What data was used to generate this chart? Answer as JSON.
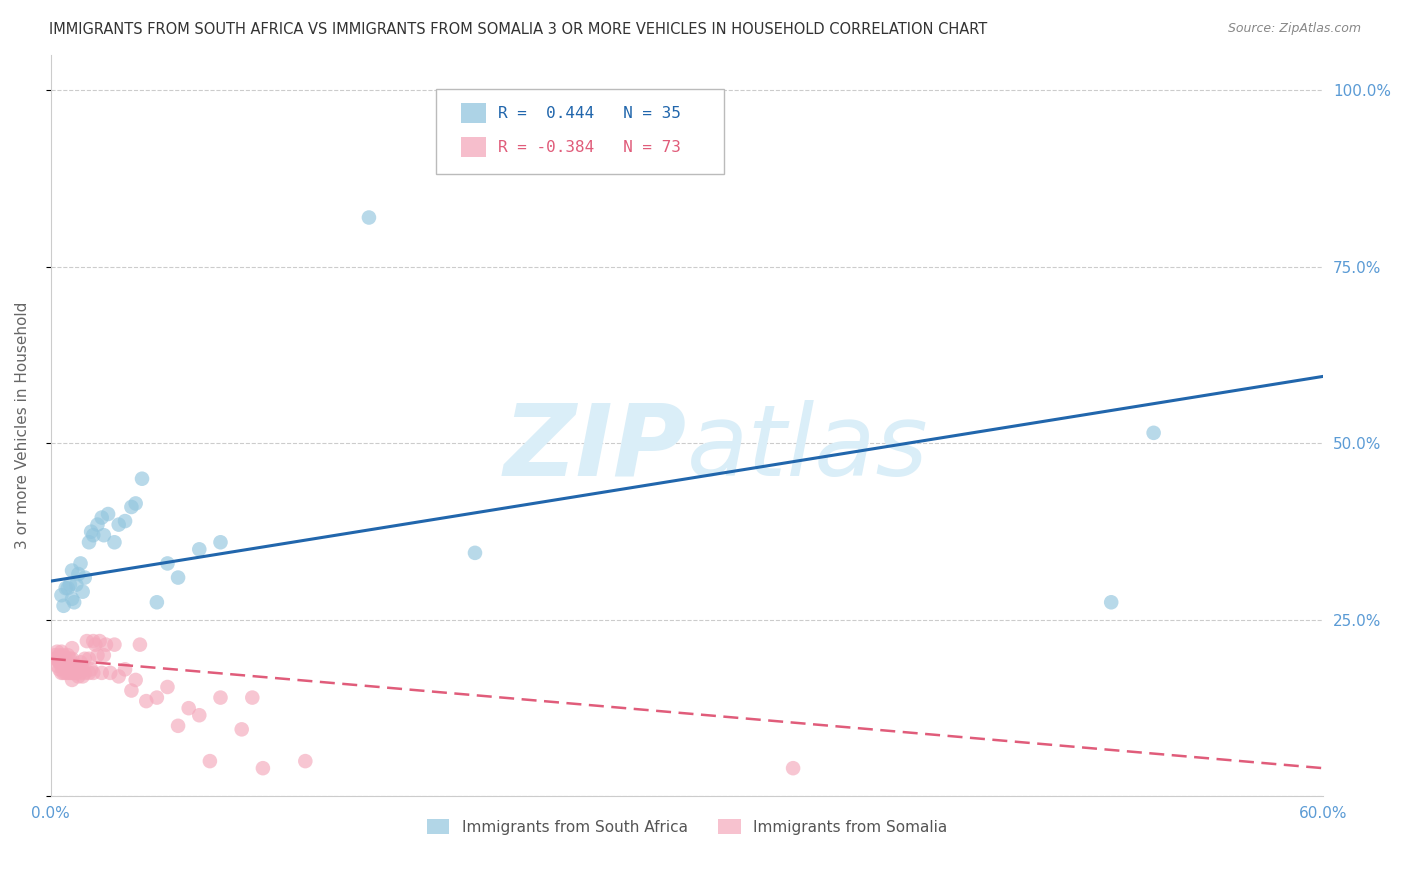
{
  "title": "IMMIGRANTS FROM SOUTH AFRICA VS IMMIGRANTS FROM SOMALIA 3 OR MORE VEHICLES IN HOUSEHOLD CORRELATION CHART",
  "source": "Source: ZipAtlas.com",
  "ylabel_left": "3 or more Vehicles in Household",
  "ylabel_right_labels": [
    "25.0%",
    "50.0%",
    "75.0%",
    "100.0%"
  ],
  "ylabel_right_values": [
    0.25,
    0.5,
    0.75,
    1.0
  ],
  "xlim": [
    0.0,
    0.6
  ],
  "ylim": [
    0.0,
    1.05
  ],
  "xtick_labels": [
    "0.0%",
    "",
    "",
    "",
    "",
    "",
    "60.0%"
  ],
  "xtick_values": [
    0.0,
    0.1,
    0.2,
    0.3,
    0.4,
    0.5,
    0.6
  ],
  "legend_blue_r": "R =  0.444",
  "legend_blue_n": "N = 35",
  "legend_pink_r": "R = -0.384",
  "legend_pink_n": "N = 73",
  "legend_blue_label": "Immigrants from South Africa",
  "legend_pink_label": "Immigrants from Somalia",
  "blue_color": "#92c5de",
  "blue_line_color": "#2166ac",
  "pink_color": "#f4a8bb",
  "pink_line_color": "#e05c7a",
  "watermark_color": "#daeef8",
  "background_color": "#ffffff",
  "grid_color": "#cccccc",
  "axis_label_color": "#5b9bd5",
  "title_color": "#333333",
  "source_color": "#888888",
  "ylabel_color": "#666666",
  "blue_line_start_y": 0.305,
  "blue_line_end_y": 0.595,
  "pink_line_start_y": 0.195,
  "pink_line_end_y": 0.04,
  "blue_x": [
    0.005,
    0.006,
    0.007,
    0.008,
    0.009,
    0.01,
    0.01,
    0.011,
    0.012,
    0.013,
    0.014,
    0.015,
    0.016,
    0.018,
    0.019,
    0.02,
    0.022,
    0.024,
    0.025,
    0.027,
    0.03,
    0.032,
    0.035,
    0.038,
    0.04,
    0.043,
    0.05,
    0.055,
    0.06,
    0.07,
    0.08,
    0.15,
    0.2,
    0.5,
    0.52
  ],
  "blue_y": [
    0.285,
    0.27,
    0.295,
    0.295,
    0.3,
    0.28,
    0.32,
    0.275,
    0.3,
    0.315,
    0.33,
    0.29,
    0.31,
    0.36,
    0.375,
    0.37,
    0.385,
    0.395,
    0.37,
    0.4,
    0.36,
    0.385,
    0.39,
    0.41,
    0.415,
    0.45,
    0.275,
    0.33,
    0.31,
    0.35,
    0.36,
    0.82,
    0.345,
    0.275,
    0.515
  ],
  "pink_x": [
    0.002,
    0.002,
    0.003,
    0.003,
    0.003,
    0.004,
    0.004,
    0.004,
    0.005,
    0.005,
    0.005,
    0.005,
    0.006,
    0.006,
    0.006,
    0.007,
    0.007,
    0.007,
    0.008,
    0.008,
    0.008,
    0.009,
    0.009,
    0.009,
    0.01,
    0.01,
    0.01,
    0.01,
    0.01,
    0.011,
    0.011,
    0.012,
    0.012,
    0.013,
    0.013,
    0.014,
    0.014,
    0.015,
    0.015,
    0.016,
    0.016,
    0.017,
    0.018,
    0.018,
    0.019,
    0.02,
    0.02,
    0.021,
    0.022,
    0.023,
    0.024,
    0.025,
    0.026,
    0.028,
    0.03,
    0.032,
    0.035,
    0.038,
    0.04,
    0.042,
    0.045,
    0.05,
    0.055,
    0.06,
    0.065,
    0.07,
    0.075,
    0.08,
    0.09,
    0.095,
    0.1,
    0.12,
    0.35
  ],
  "pink_y": [
    0.195,
    0.2,
    0.185,
    0.195,
    0.205,
    0.18,
    0.19,
    0.2,
    0.175,
    0.185,
    0.19,
    0.205,
    0.175,
    0.185,
    0.2,
    0.175,
    0.185,
    0.195,
    0.175,
    0.185,
    0.2,
    0.175,
    0.185,
    0.195,
    0.165,
    0.175,
    0.185,
    0.195,
    0.21,
    0.175,
    0.185,
    0.175,
    0.185,
    0.17,
    0.185,
    0.175,
    0.19,
    0.17,
    0.18,
    0.175,
    0.195,
    0.22,
    0.175,
    0.195,
    0.18,
    0.22,
    0.175,
    0.215,
    0.2,
    0.22,
    0.175,
    0.2,
    0.215,
    0.175,
    0.215,
    0.17,
    0.18,
    0.15,
    0.165,
    0.215,
    0.135,
    0.14,
    0.155,
    0.1,
    0.125,
    0.115,
    0.05,
    0.14,
    0.095,
    0.14,
    0.04,
    0.05,
    0.04
  ]
}
